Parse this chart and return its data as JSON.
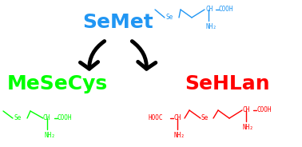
{
  "title_semet": "SeMet",
  "title_mesecys": "MeSeCys",
  "title_sehlan": "SeHLan",
  "color_semet": "#2196F3",
  "color_mesecys": "#00FF00",
  "color_sehlan": "#FF0000",
  "color_black": "#000000",
  "bg_color": "#FFFFFF",
  "semet_fontsize": 18,
  "mesecys_fontsize": 18,
  "sehlan_fontsize": 18,
  "struct_fontsize": 5.5
}
